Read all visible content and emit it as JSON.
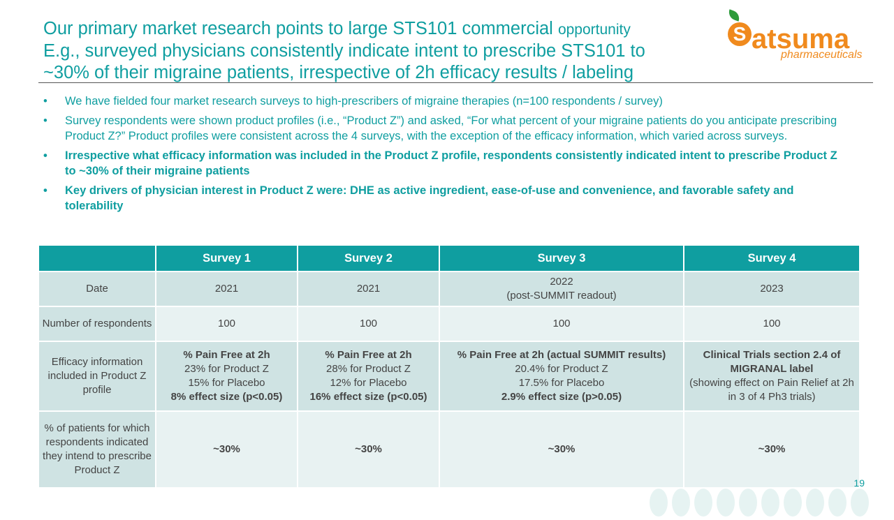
{
  "header": {
    "title_line1_main": "Our primary market research points to large STS101 commercial ",
    "title_line1_small": "opportunity",
    "title_line2": "E.g., surveyed physicians consistently indicate intent to prescribe STS101 to",
    "title_line3": "~30% of their migraine patients, irrespective of 2h efficacy results / labeling"
  },
  "logo": {
    "letter": "S",
    "word": "atsuma",
    "sub": "pharmaceuticals"
  },
  "bullets": [
    {
      "marker": "•",
      "text": "We have fielded four market research surveys to high-prescribers of migraine therapies (n=100 respondents / survey)"
    },
    {
      "marker": "•",
      "text": "Survey respondents were shown product profiles (i.e., “Product Z”) and asked, “For what percent of your migraine patients do you anticipate prescribing Product Z?”  Product profiles were consistent across the 4 surveys, with the exception of the efficacy information, which varied across surveys."
    },
    {
      "marker": "•",
      "text": "Irrespective what efficacy information was included in the Product Z profile, respondents consistently indicated intent to prescribe Product Z to ~30% of their migraine patients"
    },
    {
      "marker": "•",
      "text": "Key drivers of physician interest in Product Z were:   DHE as active ingredient, ease-of-use and convenience, and favorable safety and tolerability"
    }
  ],
  "table": {
    "headers": [
      "",
      "Survey 1",
      "Survey 2",
      "Survey 3",
      "Survey 4"
    ],
    "date": {
      "label": "Date",
      "s1": "2021",
      "s2": "2021",
      "s3_line1": "2022",
      "s3_line2": "(post-SUMMIT readout)",
      "s4": "2023"
    },
    "respondents": {
      "label": "Number of respondents",
      "s1": "100",
      "s2": "100",
      "s3": "100",
      "s4": "100"
    },
    "efficacy": {
      "label": "Efficacy information included in Product Z profile",
      "s1": {
        "head": "% Pain Free at 2h",
        "l1": "23% for Product Z",
        "l2": "15% for Placebo",
        "l3": "8% effect size (p<0.05)"
      },
      "s2": {
        "head": "% Pain Free at 2h",
        "l1": "28% for Product Z",
        "l2": "12% for Placebo",
        "l3": "16% effect size (p<0.05)"
      },
      "s3": {
        "head": "% Pain Free at 2h (actual SUMMIT results)",
        "l1": "20.4% for Product Z",
        "l2": "17.5% for Placebo",
        "l3": "2.9% effect size (p>0.05)"
      },
      "s4": {
        "head": "Clinical Trials section 2.4 of MIGRANAL label",
        "l1": "(showing effect on Pain Relief at 2h in 3 of 4 Ph3 trials)"
      }
    },
    "percent": {
      "label": "% of patients for which respondents indicated they intend to prescribe Product Z",
      "s1": "~30%",
      "s2": "~30%",
      "s3": "~30%",
      "s4": "~30%"
    }
  },
  "page_number": "19"
}
